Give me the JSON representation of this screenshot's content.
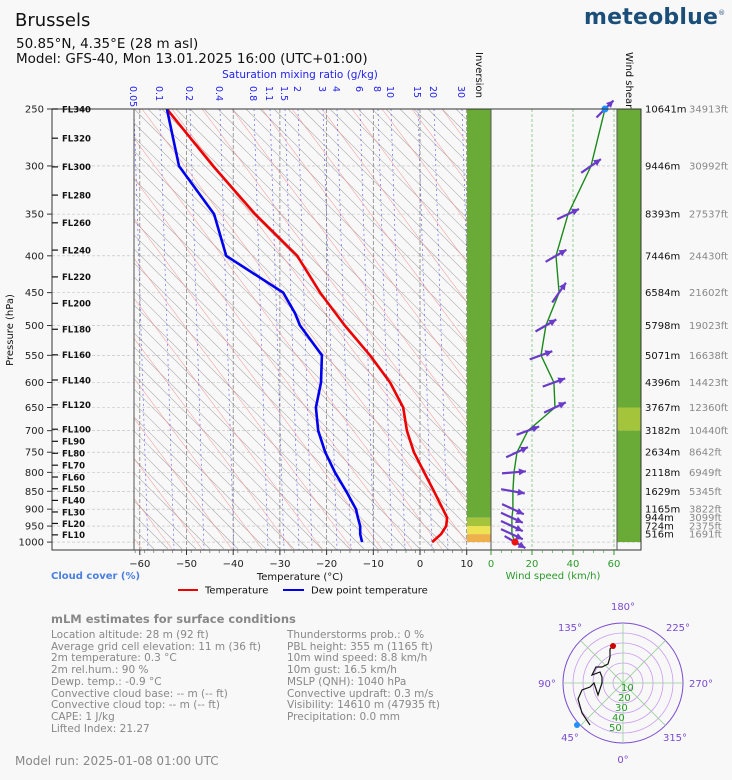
{
  "header": {
    "title": "Brussels",
    "coords": "50.85°N, 4.35°E (28 m asl)",
    "model": "Model: GFS-40, Mon 13.01.2025 16:00 (UTC+01:00)",
    "logo": "meteoblue"
  },
  "chart_data": {
    "type": "line",
    "title": "Skew-T / Emagram sounding",
    "mixing_ratio_title": "Saturation mixing ratio (g/kg)",
    "mixing_ratio_labels": [
      "0.05",
      "0.1",
      "0.2",
      "0.4",
      "0.8",
      "1.1",
      "1.5",
      "2",
      "3",
      "4",
      "6",
      "8",
      "10",
      "15",
      "20",
      "30"
    ],
    "ylabel": "Pressure (hPa)",
    "xlabel": "Temperature (°C)",
    "cloud_label": "Cloud cover (%)",
    "inversion_label": "Inversion",
    "wind_shear_label": "Wind shear",
    "wind_xlabel": "Wind speed (km/h)",
    "pressure_ticks": [
      250,
      300,
      350,
      400,
      450,
      500,
      550,
      600,
      650,
      700,
      750,
      800,
      850,
      900,
      950,
      1000
    ],
    "ylim": [
      1000,
      250
    ],
    "xlim": [
      -61.5,
      10
    ],
    "temp_ticks": [
      -60,
      -50,
      -40,
      -30,
      -20,
      -10,
      0,
      10
    ],
    "wind_ticks": [
      0,
      20,
      40,
      60
    ],
    "wind_xlim": [
      0,
      60
    ],
    "flight_levels": [
      {
        "label": "FL340",
        "fl": 340
      },
      {
        "label": "FL320",
        "fl": 320
      },
      {
        "label": "FL300",
        "fl": 300
      },
      {
        "label": "FL280",
        "fl": 280
      },
      {
        "label": "FL260",
        "fl": 260
      },
      {
        "label": "FL240",
        "fl": 240
      },
      {
        "label": "FL220",
        "fl": 220
      },
      {
        "label": "FL200",
        "fl": 200
      },
      {
        "label": "FL180",
        "fl": 180
      },
      {
        "label": "FL160",
        "fl": 160
      },
      {
        "label": "FL140",
        "fl": 140
      },
      {
        "label": "FL120",
        "fl": 120
      },
      {
        "label": "FL100",
        "fl": 100
      },
      {
        "label": "FL90",
        "fl": 90
      },
      {
        "label": "FL80",
        "fl": 80
      },
      {
        "label": "FL70",
        "fl": 70
      },
      {
        "label": "FL60",
        "fl": 60
      },
      {
        "label": "FL50",
        "fl": 50
      },
      {
        "label": "FL40",
        "fl": 40
      },
      {
        "label": "FL30",
        "fl": 30
      },
      {
        "label": "FL20",
        "fl": 20
      },
      {
        "label": "FL10",
        "fl": 10
      }
    ],
    "height_labels": [
      {
        "p": 250,
        "m": "10641m",
        "ft": "34913ft"
      },
      {
        "p": 300,
        "m": "9446m",
        "ft": "30992ft"
      },
      {
        "p": 350,
        "m": "8393m",
        "ft": "27537ft"
      },
      {
        "p": 400,
        "m": "7446m",
        "ft": "24430ft"
      },
      {
        "p": 450,
        "m": "6584m",
        "ft": "21602ft"
      },
      {
        "p": 500,
        "m": "5798m",
        "ft": "19023ft"
      },
      {
        "p": 550,
        "m": "5071m",
        "ft": "16638ft"
      },
      {
        "p": 600,
        "m": "4396m",
        "ft": "14423ft"
      },
      {
        "p": 650,
        "m": "3767m",
        "ft": "12360ft"
      },
      {
        "p": 700,
        "m": "3182m",
        "ft": "10440ft"
      },
      {
        "p": 750,
        "m": "2634m",
        "ft": "8642ft"
      },
      {
        "p": 800,
        "m": "2118m",
        "ft": "6949ft"
      },
      {
        "p": 850,
        "m": "1629m",
        "ft": "5345ft"
      },
      {
        "p": 900,
        "m": "1165m",
        "ft": "3822ft"
      },
      {
        "p": 925,
        "m": "944m",
        "ft": "3099ft"
      },
      {
        "p": 950,
        "m": "724m",
        "ft": "2375ft"
      },
      {
        "p": 975,
        "m": "516m",
        "ft": "1691ft"
      }
    ],
    "series": [
      {
        "name": "Temperature",
        "color": "#ee0000",
        "p": [
          250,
          300,
          350,
          400,
          450,
          500,
          550,
          600,
          650,
          700,
          750,
          800,
          850,
          900,
          925,
          950,
          975,
          1000
        ],
        "values": [
          -54.2,
          -44.3,
          -35.3,
          -26.3,
          -21.4,
          -16.1,
          -10.7,
          -6.4,
          -3.6,
          -2.8,
          -1.3,
          0.9,
          3.0,
          4.9,
          5.8,
          5.6,
          4.5,
          2.6
        ]
      },
      {
        "name": "Dew point temperature",
        "color": "#0000ee",
        "p": [
          250,
          300,
          350,
          400,
          450,
          480,
          500,
          550,
          600,
          650,
          700,
          750,
          800,
          850,
          900,
          925,
          950,
          975,
          1000
        ],
        "values": [
          -54.2,
          -51.6,
          -44.1,
          -41.5,
          -29.3,
          -26.8,
          -25.7,
          -21.0,
          -21.2,
          -22.3,
          -21.8,
          -20.3,
          -18.2,
          -15.8,
          -13.7,
          -13.3,
          -12.8,
          -12.8,
          -12.4
        ]
      }
    ],
    "wind": {
      "p": [
        250,
        300,
        350,
        400,
        450,
        500,
        550,
        600,
        650,
        700,
        750,
        800,
        850,
        900,
        925,
        950,
        975,
        1000
      ],
      "speed": [
        55.6,
        48.8,
        37.6,
        31.7,
        33.2,
        26.8,
        24.4,
        30.7,
        31.2,
        18.0,
        12.7,
        11.2,
        10.7,
        10.7,
        10.2,
        10.2,
        10.2,
        11.7
      ],
      "direction": [
        225,
        235,
        245,
        240,
        215,
        240,
        250,
        250,
        245,
        250,
        245,
        265,
        280,
        295,
        295,
        295,
        295,
        300
      ]
    },
    "inversion_bands": [
      {
        "p_top": 250,
        "p_bottom": 925,
        "color": "#6aaa36"
      },
      {
        "p_top": 925,
        "p_bottom": 950,
        "color": "#a3c43b"
      },
      {
        "p_top": 950,
        "p_bottom": 975,
        "color": "#ece252"
      },
      {
        "p_top": 975,
        "p_bottom": 1000,
        "color": "#eeb04b"
      }
    ],
    "shear_bands": [
      {
        "p_top": 250,
        "p_bottom": 650,
        "color": "#6aaa36"
      },
      {
        "p_top": 650,
        "p_bottom": 700,
        "color": "#a3c43b"
      },
      {
        "p_top": 700,
        "p_bottom": 1000,
        "color": "#6aaa36"
      }
    ],
    "legend": [
      "Temperature",
      "Dew point temperature"
    ],
    "hodograph": {
      "direction_labels": [
        "180°",
        "225°",
        "270°",
        "315°",
        "0°",
        "45°",
        "90°",
        "135°"
      ],
      "ring_labels": [
        "10",
        "20",
        "30",
        "40",
        "50"
      ]
    }
  },
  "surface": {
    "title": "mLM estimates for surface conditions",
    "left": [
      "Location altitude: 28 m (92 ft)",
      "Average grid cell elevation: 11 m (36 ft)",
      "2m temperature: 0.3 °C",
      "2m rel.hum.: 90 %",
      "Dewp. temp.: -0.9 °C",
      "Convective cloud base: -- m (-- ft)",
      "Convective cloud top: -- m (-- ft)",
      "CAPE: 1 J/kg",
      "Lifted Index: 21.27"
    ],
    "right": [
      "Thunderstorms prob.: 0 %",
      "PBL height: 355 m (1165 ft)",
      "10m wind speed: 8.8 km/h",
      "10m gust: 16.5 km/h",
      "MSLP (QNH): 1040 hPa",
      "Convective updraft: 0.3 m/s",
      "Visibility: 14610 m (47935 ft)",
      "Precipitation: 0.0 mm"
    ]
  },
  "footer": {
    "model_run": "Model run: 2025-01-08 01:00 UTC"
  }
}
